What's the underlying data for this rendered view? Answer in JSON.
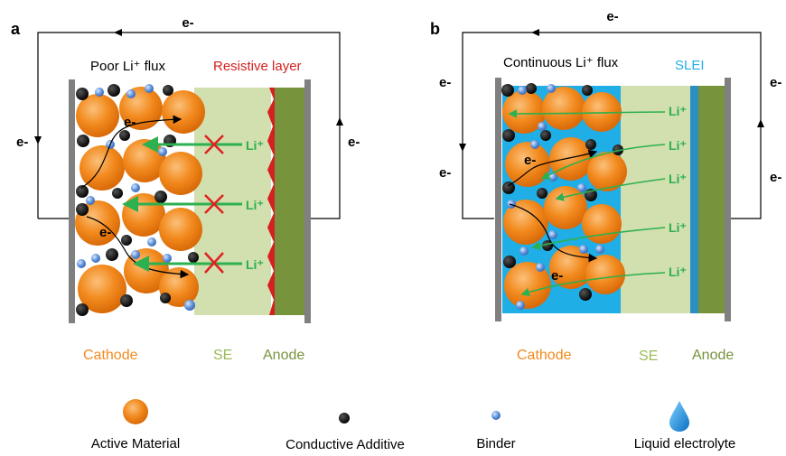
{
  "panel_a": {
    "letter": "a",
    "electron_label": "e-",
    "flux_label": "Poor Li⁺ flux",
    "resistive_label": "Resistive layer",
    "li_label": "Li⁺",
    "cathode_label": "Cathode",
    "se_label": "SE",
    "anode_label": "Anode"
  },
  "panel_b": {
    "letter": "b",
    "electron_label": "e-",
    "flux_label": "Continuous Li⁺ flux",
    "slei_label": "SLEI",
    "li_label": "Li⁺",
    "cathode_label": "Cathode",
    "se_label": "SE",
    "anode_label": "Anode"
  },
  "legend": {
    "active_material": "Active Material",
    "conductive_additive": "Conductive Additive",
    "binder": "Binder",
    "liquid_electrolyte": "Liquid electrolyte"
  },
  "colors": {
    "cathode_orange": "#F28A1E",
    "se_green": "#D2DFAE",
    "anode_green": "#77933C",
    "slei_blue": "#1FAEE5",
    "li_arrow_green": "#2DB04F",
    "resistive_red": "#D42020",
    "collector_gray": "#808080"
  }
}
